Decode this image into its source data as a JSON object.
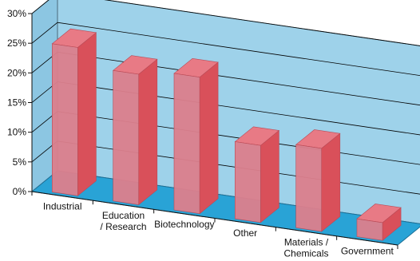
{
  "chart_data": {
    "type": "bar",
    "title": "",
    "xlabel": "",
    "ylabel": "",
    "ylim": [
      0,
      30
    ],
    "y_ticks": [
      "0%",
      "5%",
      "10%",
      "15%",
      "20%",
      "25%",
      "30%"
    ],
    "y_tick_values": [
      0,
      5,
      10,
      15,
      20,
      25,
      30
    ],
    "grid": true,
    "legend": "none",
    "categories": [
      [
        "Industrial"
      ],
      [
        "Education",
        "/ Research"
      ],
      [
        "Biotechnology"
      ],
      [
        "Other"
      ],
      [
        "Materials /",
        "Chemicals"
      ],
      [
        "Government"
      ]
    ],
    "values": [
      25,
      22,
      23,
      13,
      14,
      3
    ]
  },
  "colors": {
    "back_wall": "#9ed2ea",
    "side_wall": "#8cc6e2",
    "floor": "#29a3d6",
    "bar_front": "#db7f8c",
    "bar_side": "#d9505a",
    "bar_top": "#e87a85",
    "grid": "#000000"
  }
}
